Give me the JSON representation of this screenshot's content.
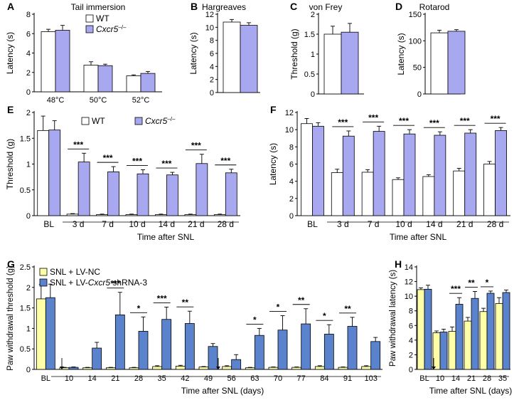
{
  "colors": {
    "wt": "#ffffff",
    "ko": "#a8a8f0",
    "nc": "#ffffa8",
    "sh": "#5b82cc",
    "axis": "#000000"
  },
  "chart_data": [
    {
      "panel": "A",
      "type": "bar",
      "title": "Tail immersion",
      "xlabel": "",
      "ylabel": "Latency (s)",
      "ylim": [
        0,
        8
      ],
      "yticks": [
        0,
        2,
        4,
        6,
        8
      ],
      "categories": [
        "48°C",
        "50°C",
        "52°C"
      ],
      "legend": [
        "WT",
        "Cxcr5"
      ],
      "series": [
        {
          "name": "WT",
          "values": [
            6.2,
            2.75,
            1.65
          ],
          "errors": [
            0.25,
            0.35,
            0.1
          ]
        },
        {
          "name": "Cxcr5",
          "values": [
            6.35,
            2.7,
            1.9
          ],
          "errors": [
            0.5,
            0.15,
            0.2
          ]
        }
      ]
    },
    {
      "panel": "B",
      "type": "bar",
      "title": "Hargreaves",
      "xlabel": "",
      "ylabel": "Latency (s)",
      "ylim": [
        0,
        12
      ],
      "yticks": [
        0,
        2,
        4,
        6,
        8,
        10,
        12
      ],
      "series": [
        {
          "values": [
            10.8,
            10.3
          ],
          "errors": [
            0.4,
            0.4
          ]
        }
      ]
    },
    {
      "panel": "C",
      "type": "bar",
      "title": "von Frey",
      "xlabel": "",
      "ylabel": "Threshold (g)",
      "ylim": [
        0,
        2
      ],
      "yticks": [
        0,
        0.5,
        1,
        1.5,
        2
      ],
      "series": [
        {
          "values": [
            1.5,
            1.55
          ],
          "errors": [
            0.2,
            0.22
          ]
        }
      ]
    },
    {
      "panel": "D",
      "type": "bar",
      "title": "Rotarod",
      "xlabel": "",
      "ylabel": "Latency (s)",
      "ylim": [
        0,
        150
      ],
      "yticks": [
        0,
        50,
        100,
        150
      ],
      "series": [
        {
          "values": [
            115,
            118
          ],
          "errors": [
            5,
            3
          ]
        }
      ]
    },
    {
      "panel": "E",
      "type": "bar",
      "title": "",
      "xlabel": "Time after SNL",
      "ylabel": "Threshold (g)",
      "ylim": [
        0,
        2
      ],
      "yticks": [
        0,
        0.5,
        1,
        1.5,
        2
      ],
      "categories": [
        "BL",
        "3 d",
        "7 d",
        "10 d",
        "14 d",
        "21 d",
        "28 d"
      ],
      "legend": [
        "WT",
        "Cxcr5"
      ],
      "series": [
        {
          "name": "WT",
          "values": [
            1.65,
            0.03,
            0.02,
            0.02,
            0.02,
            0.02,
            0.02
          ],
          "errors": [
            0.28,
            0.01,
            0.01,
            0.01,
            0.01,
            0.01,
            0.01
          ]
        },
        {
          "name": "Cxcr5",
          "values": [
            1.66,
            1.04,
            0.85,
            0.81,
            0.79,
            1.01,
            0.83
          ],
          "errors": [
            0.18,
            0.17,
            0.1,
            0.08,
            0.05,
            0.18,
            0.07
          ]
        }
      ],
      "significance": [
        "",
        "***",
        "***",
        "***",
        "***",
        "***",
        "***"
      ]
    },
    {
      "panel": "F",
      "type": "bar",
      "title": "",
      "xlabel": "Time after SNL",
      "ylabel": "Latency (s)",
      "ylim": [
        0,
        12
      ],
      "yticks": [
        0,
        2,
        4,
        6,
        8,
        10,
        12
      ],
      "categories": [
        "BL",
        "3 d",
        "7 d",
        "10 d",
        "14 d",
        "21 d",
        "28 d"
      ],
      "series": [
        {
          "name": "WT",
          "values": [
            10.7,
            5.0,
            5.05,
            4.2,
            4.55,
            5.2,
            6.0
          ],
          "errors": [
            0.6,
            0.4,
            0.3,
            0.2,
            0.2,
            0.3,
            0.3
          ]
        },
        {
          "name": "Cxcr5",
          "values": [
            10.4,
            9.25,
            9.8,
            9.5,
            9.35,
            9.6,
            9.9
          ],
          "errors": [
            0.4,
            0.6,
            0.6,
            0.5,
            0.4,
            0.4,
            0.35
          ]
        }
      ],
      "significance": [
        "",
        "***",
        "***",
        "***",
        "***",
        "***",
        "***"
      ]
    },
    {
      "panel": "G",
      "type": "bar",
      "title": "",
      "xlabel": "Time after SNL (days)",
      "ylabel": "Paw withdrawal threshold (g)",
      "ylim": [
        0,
        2.5
      ],
      "yticks": [
        0,
        0.5,
        1,
        1.5,
        2,
        2.5
      ],
      "categories": [
        "BL",
        "10",
        "14",
        "21",
        "28",
        "35",
        "42",
        "49",
        "56",
        "63",
        "70",
        "77",
        "84",
        "91",
        "103"
      ],
      "legend": [
        "SNL + LV-NC",
        "SNL + LV-Cxcr5 shRNA-3"
      ],
      "series": [
        {
          "name": "SNL + LV-NC",
          "values": [
            1.72,
            0.04,
            0.04,
            0.04,
            0.04,
            0.07,
            0.08,
            0.06,
            0.07,
            0.04,
            0.05,
            0.05,
            0.07,
            0.05,
            0.07
          ],
          "errors": [
            0.35,
            0.01,
            0.01,
            0.01,
            0.01,
            0.02,
            0.02,
            0.01,
            0.02,
            0.01,
            0.01,
            0.01,
            0.02,
            0.01,
            0.02
          ]
        },
        {
          "name": "SNL + LV-Cxcr5 shRNA-3",
          "values": [
            1.75,
            0.05,
            0.52,
            1.33,
            0.93,
            1.22,
            1.12,
            0.56,
            0.24,
            0.83,
            0.96,
            1.11,
            0.86,
            1.05,
            0.68
          ],
          "errors": [
            0.33,
            0.01,
            0.14,
            0.55,
            0.35,
            0.3,
            0.3,
            0.07,
            0.12,
            0.17,
            0.35,
            0.37,
            0.23,
            0.22,
            0.1
          ]
        }
      ],
      "significance": [
        "",
        "",
        "",
        "***",
        "*",
        "***",
        "**",
        "",
        "",
        "*",
        "*",
        "**",
        "*",
        "**",
        ""
      ]
    },
    {
      "panel": "H",
      "type": "bar",
      "title": "",
      "xlabel": "Time after SNL (days)",
      "ylabel": "Paw withdrawal latency (s)",
      "ylim": [
        0,
        14
      ],
      "yticks": [
        0,
        2,
        4,
        6,
        8,
        10,
        12,
        14
      ],
      "categories": [
        "BL",
        "10",
        "14",
        "21",
        "28",
        "35"
      ],
      "series": [
        {
          "name": "SNL + LV-NC",
          "values": [
            10.9,
            5.0,
            5.2,
            6.6,
            7.9,
            9.0
          ],
          "errors": [
            0.25,
            0.25,
            0.6,
            0.5,
            0.45,
            0.8
          ]
        },
        {
          "name": "SNL + LV-Cxcr5 shRNA-3",
          "values": [
            10.95,
            5.1,
            8.9,
            9.7,
            10.4,
            10.5
          ],
          "errors": [
            0.55,
            0.4,
            0.9,
            0.95,
            0.3,
            0.35
          ]
        }
      ],
      "significance": [
        "",
        "",
        "***",
        "**",
        "*",
        ""
      ]
    }
  ]
}
